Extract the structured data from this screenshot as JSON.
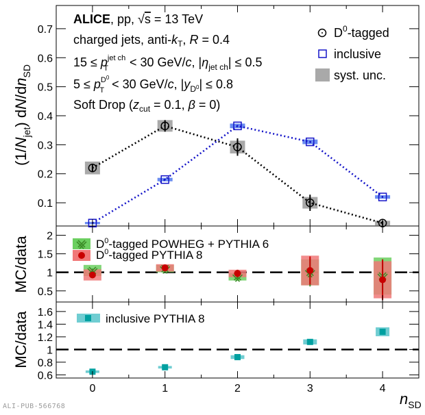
{
  "chart_data": [
    {
      "type": "scatter",
      "panel": "top",
      "ylabel": "(1/N_jet) dN/dn_SD",
      "ylim": [
        0.02,
        0.78
      ],
      "yticks": [
        "0.1",
        "0.2",
        "0.3",
        "0.4",
        "0.5",
        "0.6",
        "0.7"
      ],
      "annotations": [
        "ALICE, pp, √s = 13 TeV",
        "charged jets, anti-kT, R = 0.4",
        "15 ≤ pT^jet ch < 30 GeV/c, |η_jet ch| ≤ 0.5",
        "5 ≤ pT^D0 < 30 GeV/c, |y_D0| ≤ 0.8",
        "Soft Drop (zcut = 0.1, β = 0)"
      ],
      "legend_position": "top-right",
      "series": [
        {
          "name": "D0-tagged",
          "marker": "open-circle",
          "line": "dotted",
          "color": "#000000",
          "syst_color": "#a9a9a9",
          "x": [
            0,
            1,
            2,
            3,
            4
          ],
          "y": [
            0.22,
            0.365,
            0.292,
            0.1,
            0.03
          ],
          "stat_err": [
            0.012,
            0.02,
            0.03,
            0.028,
            0.008
          ],
          "syst_err": [
            0.022,
            0.02,
            0.022,
            0.02,
            0.008
          ]
        },
        {
          "name": "inclusive",
          "marker": "open-square",
          "line": "dotted",
          "color": "#1414c8",
          "syst_color": "#6a8cf0",
          "x": [
            0,
            1,
            2,
            3,
            4
          ],
          "y": [
            0.03,
            0.18,
            0.365,
            0.31,
            0.12
          ],
          "stat_err": [
            0.002,
            0.003,
            0.003,
            0.003,
            0.003
          ],
          "syst_err": [
            0.004,
            0.006,
            0.008,
            0.008,
            0.006
          ]
        }
      ],
      "legend": [
        "D0-tagged",
        "inclusive",
        "syst. unc."
      ]
    },
    {
      "type": "scatter",
      "panel": "middle",
      "ylabel": "MC/data",
      "ylim": [
        0.2,
        2.25
      ],
      "yticks": [
        "0.5",
        "1",
        "1.5",
        "2"
      ],
      "reference_line": 1,
      "series": [
        {
          "name": "D0-tagged POWHEG + PYTHIA 6",
          "marker": "open-x",
          "color": "#3c8c28",
          "syst_color": "#6ccf60",
          "x": [
            0,
            1,
            2,
            3,
            4
          ],
          "y": [
            1.05,
            1.1,
            0.88,
            1.0,
            0.9
          ],
          "stat_err": [
            0.05,
            0.06,
            0.1,
            0.38,
            0.45
          ],
          "syst_err": [
            0.15,
            0.1,
            0.1,
            0.35,
            0.5
          ]
        },
        {
          "name": "D0-tagged PYTHIA 8",
          "marker": "filled-circle",
          "color": "#c80000",
          "syst_color": "#f07878",
          "x": [
            0,
            1,
            2,
            3,
            4
          ],
          "y": [
            0.93,
            1.12,
            0.97,
            1.05,
            0.8
          ],
          "stat_err": [
            0.05,
            0.06,
            0.1,
            0.38,
            0.55
          ],
          "syst_err": [
            0.15,
            0.1,
            0.1,
            0.4,
            0.5
          ]
        }
      ],
      "legend": [
        "D0-tagged POWHEG + PYTHIA 6",
        "D0-tagged PYTHIA 8"
      ]
    },
    {
      "type": "scatter",
      "panel": "bottom",
      "ylabel": "MC/data",
      "ylim": [
        0.55,
        1.75
      ],
      "yticks": [
        "0.6",
        "0.8",
        "1",
        "1.2",
        "1.4",
        "1.6"
      ],
      "reference_line": 1,
      "xlabel": "n_SD",
      "xlim": [
        -0.5,
        4.5
      ],
      "xticks": [
        "0",
        "1",
        "2",
        "3",
        "4"
      ],
      "series": [
        {
          "name": "inclusive PYTHIA 8",
          "marker": "filled-square",
          "color": "#00a0a0",
          "syst_color": "#70cdd2",
          "x": [
            0,
            1,
            2,
            3,
            4
          ],
          "y": [
            0.65,
            0.72,
            0.88,
            1.12,
            1.28
          ],
          "stat_err": [
            0.01,
            0.01,
            0.01,
            0.01,
            0.01
          ],
          "syst_err": [
            0.02,
            0.02,
            0.03,
            0.04,
            0.07
          ]
        }
      ],
      "legend": [
        "inclusive PYTHIA 8"
      ]
    }
  ],
  "watermark": "ALI-PUB-566768"
}
